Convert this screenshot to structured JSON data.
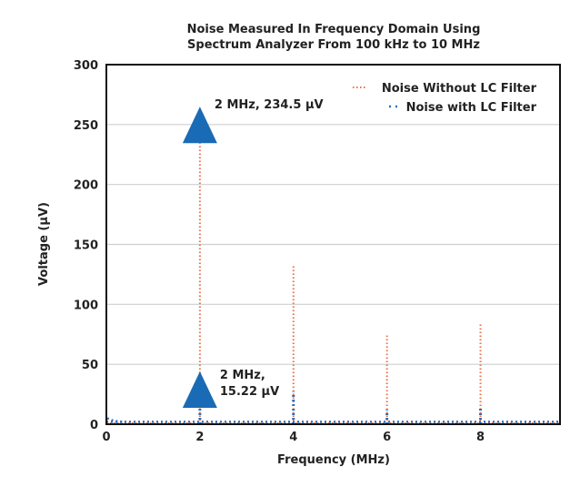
{
  "chart_data": {
    "type": "line",
    "title": "Noise Measured In Frequency Domain Using",
    "subtitle": "Spectrum Analyzer From 100 kHz to 10 MHz",
    "xlabel": "Frequency (MHz)",
    "ylabel": "Voltage (µV)",
    "xlim": [
      0,
      9.7
    ],
    "ylim": [
      0,
      300
    ],
    "xticks": [
      "0",
      "2",
      "4",
      "6",
      "8"
    ],
    "yticks": [
      "0",
      "50",
      "100",
      "150",
      "200",
      "250",
      "300"
    ],
    "grid": "horizontal",
    "legend_position": "top-right",
    "series": [
      {
        "name": "Noise Without LC Filter",
        "color": "#e8704a",
        "style": "dotted",
        "spikes": [
          {
            "x": 2,
            "y": 234.5
          },
          {
            "x": 4,
            "y": 132
          },
          {
            "x": 6,
            "y": 74
          },
          {
            "x": 8,
            "y": 85
          }
        ],
        "baseline": 1
      },
      {
        "name": "Noise with LC Filter",
        "color": "#2a6fba",
        "style": "dotted",
        "spikes": [
          {
            "x": 0,
            "y": 5
          },
          {
            "x": 2,
            "y": 15.22
          },
          {
            "x": 4,
            "y": 27
          },
          {
            "x": 6,
            "y": 12
          },
          {
            "x": 8,
            "y": 15
          }
        ],
        "baseline": 2
      }
    ],
    "annotations": [
      {
        "x": 2,
        "y": 234.5,
        "lines": [
          "2 MHz, 234.5 µV"
        ]
      },
      {
        "x": 2,
        "y": 15.22,
        "lines": [
          "2 MHz,",
          "15.22 µV"
        ]
      }
    ],
    "marker_color": "#1a6bb5"
  }
}
